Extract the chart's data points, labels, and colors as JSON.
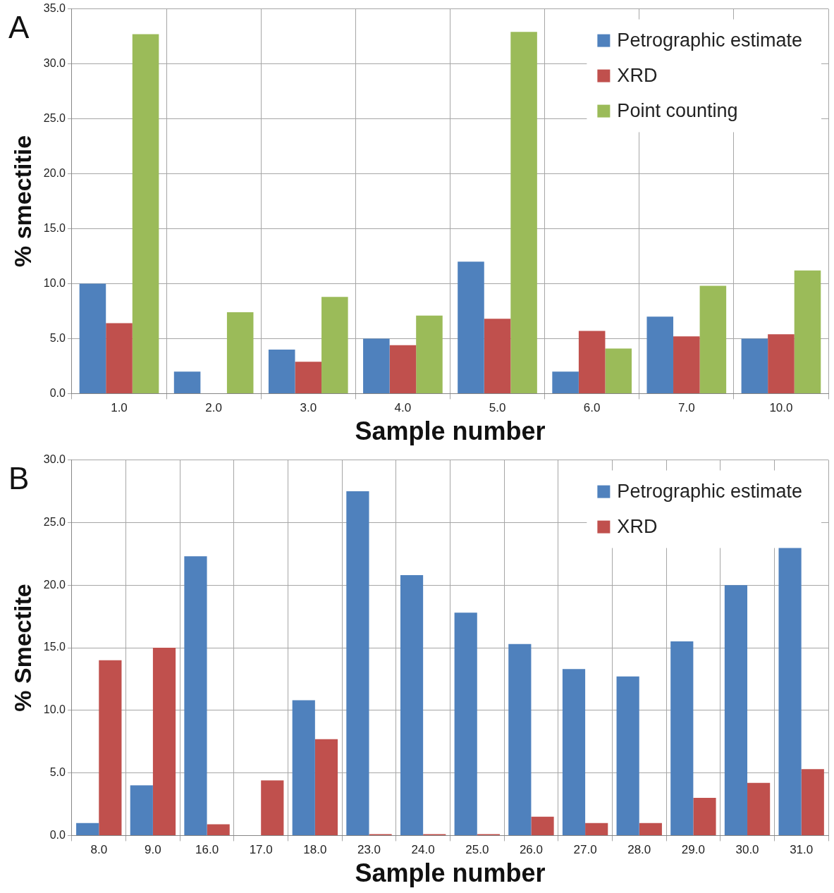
{
  "chart_data": [
    {
      "type": "bar",
      "annotations": [
        "A"
      ],
      "xlabel": "Sample number",
      "ylabel": "% smectitie",
      "categories": [
        "1.0",
        "2.0",
        "3.0",
        "4.0",
        "5.0",
        "6.0",
        "7.0",
        "10.0"
      ],
      "series": [
        {
          "name": "Petrographic estimate",
          "color": "#4f81bd",
          "values": [
            10,
            2,
            4,
            5,
            12,
            2,
            7,
            5
          ]
        },
        {
          "name": "XRD",
          "color": "#c0504d",
          "values": [
            6.4,
            0,
            2.9,
            4.4,
            6.8,
            5.7,
            5.2,
            5.4
          ]
        },
        {
          "name": "Point counting",
          "color": "#9bbb59",
          "values": [
            32.7,
            7.4,
            8.8,
            7.1,
            32.9,
            4.1,
            9.8,
            11.2
          ]
        }
      ],
      "ylim": [
        0,
        35
      ],
      "yticks": [
        {
          "value": 0,
          "label": "0.0"
        },
        {
          "value": 5,
          "label": "5.0"
        },
        {
          "value": 10,
          "label": "10.0"
        },
        {
          "value": 15,
          "label": "15.0"
        },
        {
          "value": 20,
          "label": "20.0"
        },
        {
          "value": 25,
          "label": "25.0"
        },
        {
          "value": 30,
          "label": "30.0"
        },
        {
          "value": 35,
          "label": "35.0"
        }
      ],
      "grid": true,
      "legend": "top right"
    },
    {
      "type": "bar",
      "annotations": [
        "B"
      ],
      "xlabel": "Sample number",
      "ylabel": "% Smectite",
      "categories": [
        "8.0",
        "9.0",
        "16.0",
        "17.0",
        "18.0",
        "23.0",
        "24.0",
        "25.0",
        "26.0",
        "27.0",
        "28.0",
        "29.0",
        "30.0",
        "31.0"
      ],
      "series": [
        {
          "name": "Petrographic estimate",
          "color": "#4f81bd",
          "values": [
            1,
            4,
            22.3,
            0,
            10.8,
            27.5,
            20.8,
            17.8,
            15.3,
            13.3,
            12.7,
            15.5,
            20,
            23
          ]
        },
        {
          "name": "XRD",
          "color": "#c0504d",
          "values": [
            14,
            15,
            0.9,
            4.4,
            7.7,
            0.1,
            0.1,
            0.1,
            1.5,
            1,
            1,
            3,
            4.2,
            5.3
          ]
        }
      ],
      "ylim": [
        0,
        30
      ],
      "yticks": [
        {
          "value": 0,
          "label": "0.0"
        },
        {
          "value": 5,
          "label": "5.0"
        },
        {
          "value": 10,
          "label": "10.0"
        },
        {
          "value": 15,
          "label": "15.0"
        },
        {
          "value": 20,
          "label": "20.0"
        },
        {
          "value": 25,
          "label": "25.0"
        },
        {
          "value": 30,
          "label": "30.0"
        }
      ],
      "grid": true,
      "legend": "top right"
    }
  ]
}
